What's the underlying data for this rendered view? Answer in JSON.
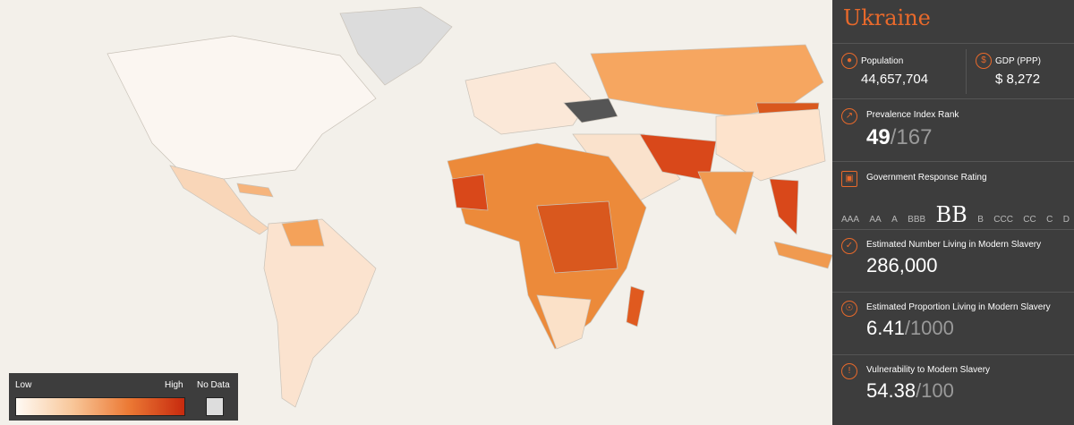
{
  "country": "Ukraine",
  "population": {
    "label": "Population",
    "value": "44,657,704"
  },
  "gdp": {
    "label": "GDP (PPP)",
    "value": "$ 8,272"
  },
  "prevalence_rank": {
    "label": "Prevalence Index Rank",
    "value": "49",
    "out_of": "/167"
  },
  "government_response": {
    "label": "Government Response Rating",
    "scale": [
      "AAA",
      "AA",
      "A",
      "BBB",
      "BB",
      "B",
      "CCC",
      "CC",
      "C",
      "D"
    ],
    "current": 4
  },
  "estimated_number": {
    "label": "Estimated Number Living in Modern Slavery",
    "value": "286,000"
  },
  "estimated_proportion": {
    "label": "Estimated Proportion Living in Modern Slavery",
    "value": "6.41",
    "out_of": "/1000"
  },
  "vulnerability": {
    "label": "Vulnerability to Modern Slavery",
    "value": "54.38",
    "out_of": "/100"
  },
  "legend": {
    "low": "Low",
    "high": "High",
    "no_data": "No Data"
  }
}
